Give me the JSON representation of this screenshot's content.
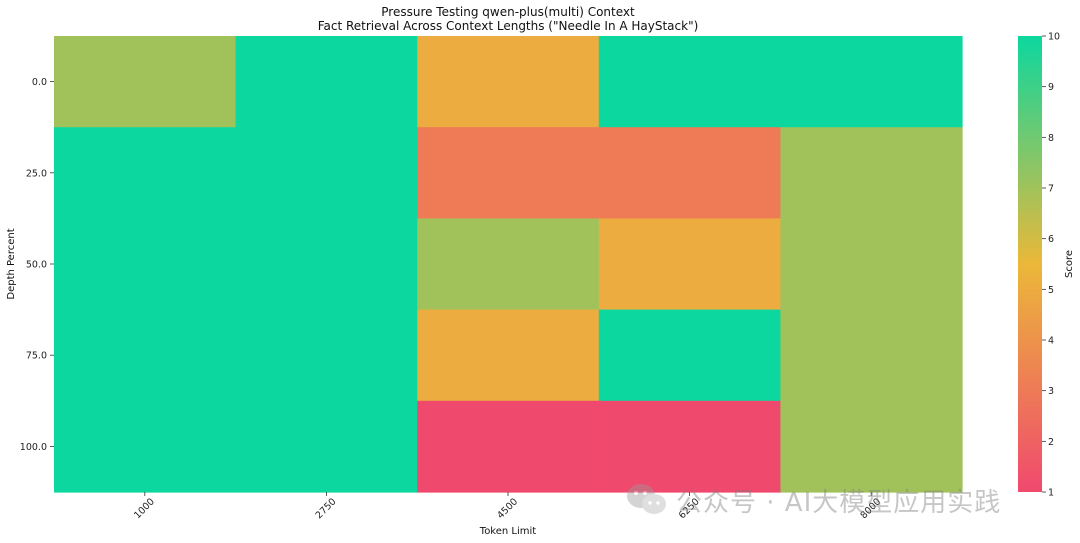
{
  "chart_data": {
    "type": "heatmap",
    "title": "Pressure Testing qwen-plus(multi) Context",
    "subtitle": "Fact Retrieval Across Context Lengths (\"Needle In A HayStack\")",
    "xlabel": "Token Limit",
    "ylabel": "Depth Percent",
    "x_categories": [
      "1000",
      "2750",
      "4500",
      "6250",
      "8000"
    ],
    "y_categories": [
      "0.0",
      "25.0",
      "50.0",
      "75.0",
      "100.0"
    ],
    "values": [
      [
        7,
        10,
        5,
        10,
        10
      ],
      [
        10,
        10,
        3,
        3,
        7
      ],
      [
        10,
        10,
        7,
        5,
        7
      ],
      [
        10,
        10,
        5,
        10,
        7
      ],
      [
        10,
        10,
        1,
        1,
        7
      ]
    ],
    "colorbar": {
      "label": "Score",
      "min": 1,
      "max": 10,
      "ticks": [
        "1",
        "2",
        "3",
        "4",
        "5",
        "6",
        "7",
        "8",
        "9",
        "10"
      ],
      "colors": [
        "#F0496E",
        "#EBB839",
        "#0CD79F"
      ]
    }
  },
  "watermark": {
    "icon": "wechat-icon",
    "text": "公众号 · AI大模型应用实践"
  }
}
